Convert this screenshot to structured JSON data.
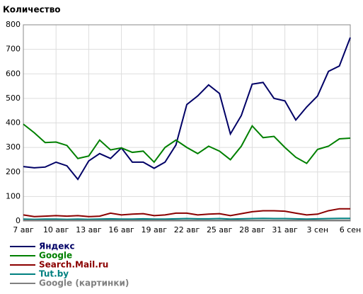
{
  "chart_data": {
    "type": "line",
    "title": "Количество",
    "categories": [
      "7 авг",
      null,
      null,
      "10 авг",
      null,
      null,
      "13 авг",
      null,
      null,
      "16 авг",
      null,
      null,
      "19 авг",
      null,
      null,
      "22 авг",
      null,
      null,
      "25 авг",
      null,
      null,
      "28 авг",
      null,
      null,
      "31 авг",
      null,
      null,
      "3 сен",
      null,
      null,
      "6 сен"
    ],
    "series": [
      {
        "name": "Яндекс",
        "color": "#000066",
        "values": [
          222,
          217,
          220,
          240,
          225,
          170,
          245,
          275,
          255,
          298,
          240,
          240,
          215,
          240,
          310,
          475,
          510,
          555,
          520,
          355,
          430,
          558,
          565,
          500,
          490,
          412,
          465,
          510,
          610,
          632,
          748
        ]
      },
      {
        "name": "Google",
        "color": "#008000",
        "values": [
          395,
          360,
          320,
          322,
          308,
          255,
          265,
          330,
          290,
          298,
          280,
          285,
          240,
          300,
          330,
          300,
          275,
          305,
          285,
          250,
          305,
          388,
          340,
          345,
          300,
          260,
          235,
          292,
          305,
          335,
          338
        ]
      },
      {
        "name": "Search.Mail.ru",
        "color": "#8b0000",
        "values": [
          25,
          18,
          20,
          22,
          20,
          22,
          18,
          20,
          32,
          25,
          28,
          30,
          22,
          25,
          32,
          32,
          25,
          28,
          30,
          22,
          30,
          38,
          42,
          42,
          40,
          32,
          25,
          28,
          42,
          50,
          50
        ]
      },
      {
        "name": "Tut.by",
        "color": "#008080",
        "values": [
          8,
          7,
          8,
          8,
          7,
          8,
          7,
          8,
          9,
          8,
          8,
          9,
          8,
          8,
          9,
          10,
          9,
          9,
          10,
          8,
          9,
          10,
          11,
          10,
          10,
          9,
          8,
          9,
          10,
          11,
          11
        ]
      },
      {
        "name": "Google (картинки)",
        "color": "#808080",
        "values": [
          3,
          3,
          3,
          3,
          3,
          3,
          3,
          3,
          3,
          3,
          3,
          3,
          3,
          3,
          3,
          3,
          3,
          3,
          3,
          3,
          3,
          3,
          3,
          3,
          3,
          3,
          3,
          3,
          3,
          3,
          3
        ]
      }
    ],
    "ylim": [
      0,
      800
    ],
    "yticks": [
      0,
      100,
      200,
      300,
      400,
      500,
      600,
      700,
      800
    ],
    "grid": true
  }
}
